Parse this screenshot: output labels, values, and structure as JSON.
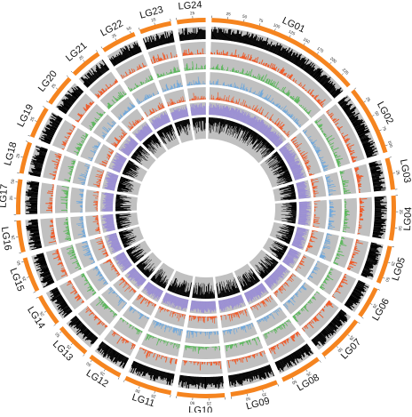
{
  "chart_data": {
    "type": "circos",
    "title": "",
    "grid": false,
    "scale_units": "Mb",
    "chromosomes": [
      {
        "name": "LG01",
        "length": 245
      },
      {
        "name": "LG02",
        "length": 110
      },
      {
        "name": "LG03",
        "length": 50
      },
      {
        "name": "LG04",
        "length": 70
      },
      {
        "name": "LG05",
        "length": 60
      },
      {
        "name": "LG06",
        "length": 50
      },
      {
        "name": "LG07",
        "length": 75
      },
      {
        "name": "LG08",
        "length": 65
      },
      {
        "name": "LG09",
        "length": 75
      },
      {
        "name": "LG10",
        "length": 75
      },
      {
        "name": "LG11",
        "length": 75
      },
      {
        "name": "LG12",
        "length": 55
      },
      {
        "name": "LG13",
        "length": 55
      },
      {
        "name": "LG14",
        "length": 50
      },
      {
        "name": "LG15",
        "length": 55
      },
      {
        "name": "LG16",
        "length": 50
      },
      {
        "name": "LG17",
        "length": 55
      },
      {
        "name": "LG18",
        "length": 50
      },
      {
        "name": "LG19",
        "length": 50
      },
      {
        "name": "LG20",
        "length": 50
      },
      {
        "name": "LG21",
        "length": 50
      },
      {
        "name": "LG22",
        "length": 55
      },
      {
        "name": "LG23",
        "length": 50
      },
      {
        "name": "LG24",
        "length": 45
      }
    ],
    "tick_interval": 25,
    "tracks": [
      {
        "color": "#000000",
        "type": "histogram",
        "direction": "outward"
      },
      {
        "color": "#f05a28",
        "type": "histogram",
        "direction": "outward"
      },
      {
        "color": "#5cb85c",
        "type": "histogram",
        "direction": "outward"
      },
      {
        "color": "#6fa8dc",
        "type": "histogram",
        "direction": "outward"
      },
      {
        "color": "#f05a28",
        "type": "histogram",
        "direction": "outward"
      },
      {
        "color": "#9b8fd4",
        "type": "histogram",
        "direction": "outward"
      },
      {
        "color": "#000000",
        "type": "histogram",
        "direction": "inward"
      }
    ],
    "colors": {
      "ideogram": "#f5841f",
      "track_background": "#c0c0c0"
    }
  }
}
